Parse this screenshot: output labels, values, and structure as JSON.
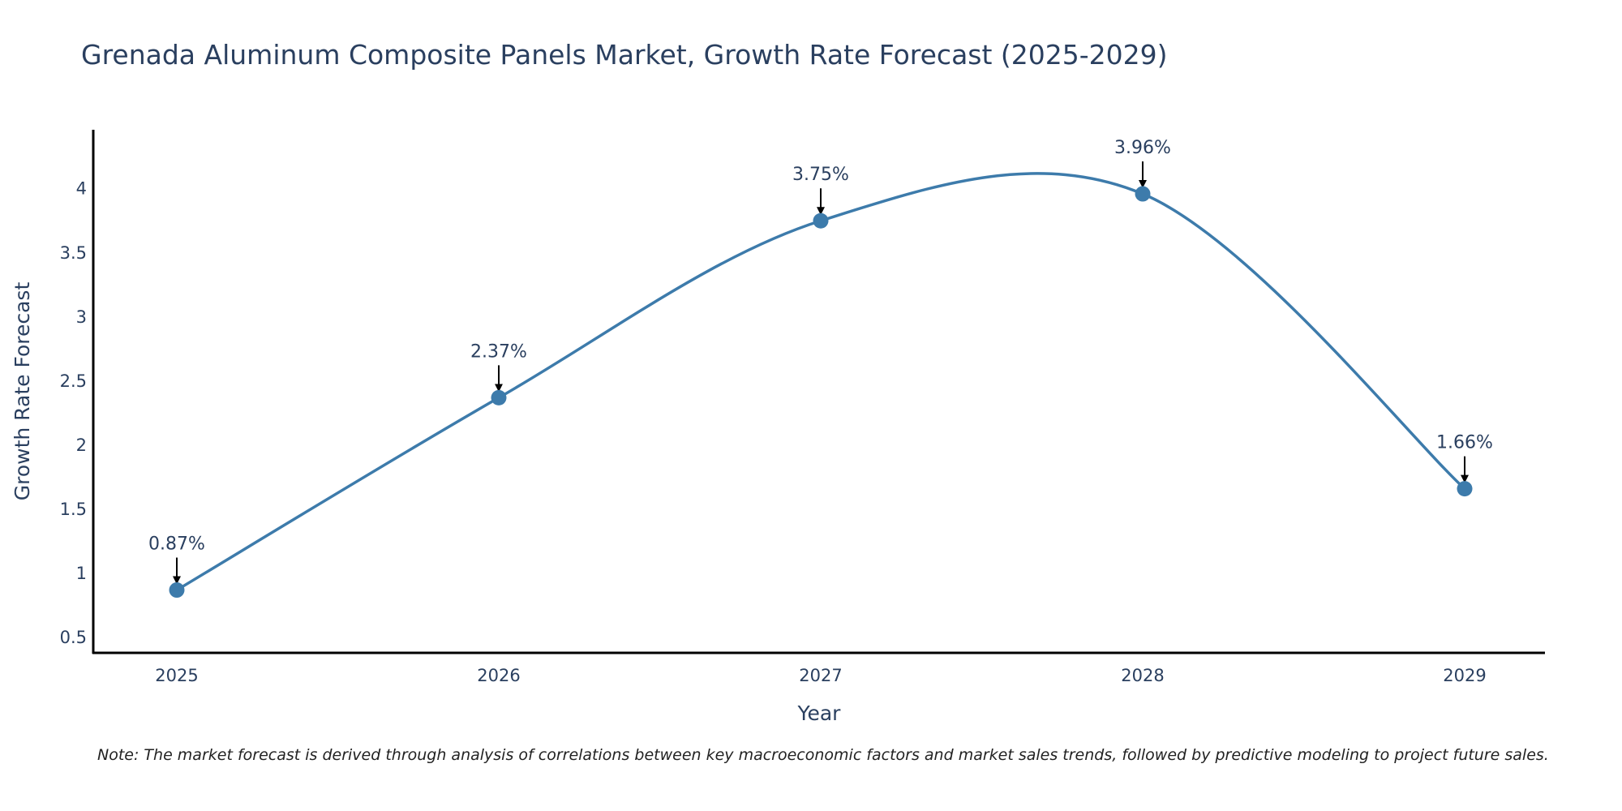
{
  "title": "Grenada Aluminum Composite Panels Market, Growth Rate Forecast (2025-2029)",
  "note": "Note: The market forecast is derived through analysis of correlations between key macroeconomic factors and market sales trends, followed by predictive modeling to project future sales.",
  "colors": {
    "line": "#3d7bab",
    "marker": "#3d7bab",
    "axis": "#000000",
    "text": "#2a3f5f"
  },
  "chart_data": {
    "type": "line",
    "title": "Grenada Aluminum Composite Panels Market, Growth Rate Forecast (2025-2029)",
    "xlabel": "Year",
    "ylabel": "Growth Rate Forecast",
    "categories": [
      "2025",
      "2026",
      "2027",
      "2028",
      "2029"
    ],
    "values": [
      0.87,
      2.37,
      3.75,
      3.96,
      1.66
    ],
    "labels": [
      "0.87%",
      "2.37%",
      "3.75%",
      "3.96%",
      "1.66%"
    ],
    "yticks": [
      0.5,
      1,
      1.5,
      2,
      2.5,
      3,
      3.5,
      4
    ],
    "ytick_labels": [
      "0.5",
      "1",
      "1.5",
      "2",
      "2.5",
      "3",
      "3.5",
      "4"
    ],
    "ylim": [
      0.38,
      4.46
    ],
    "grid": false,
    "smooth": true
  }
}
